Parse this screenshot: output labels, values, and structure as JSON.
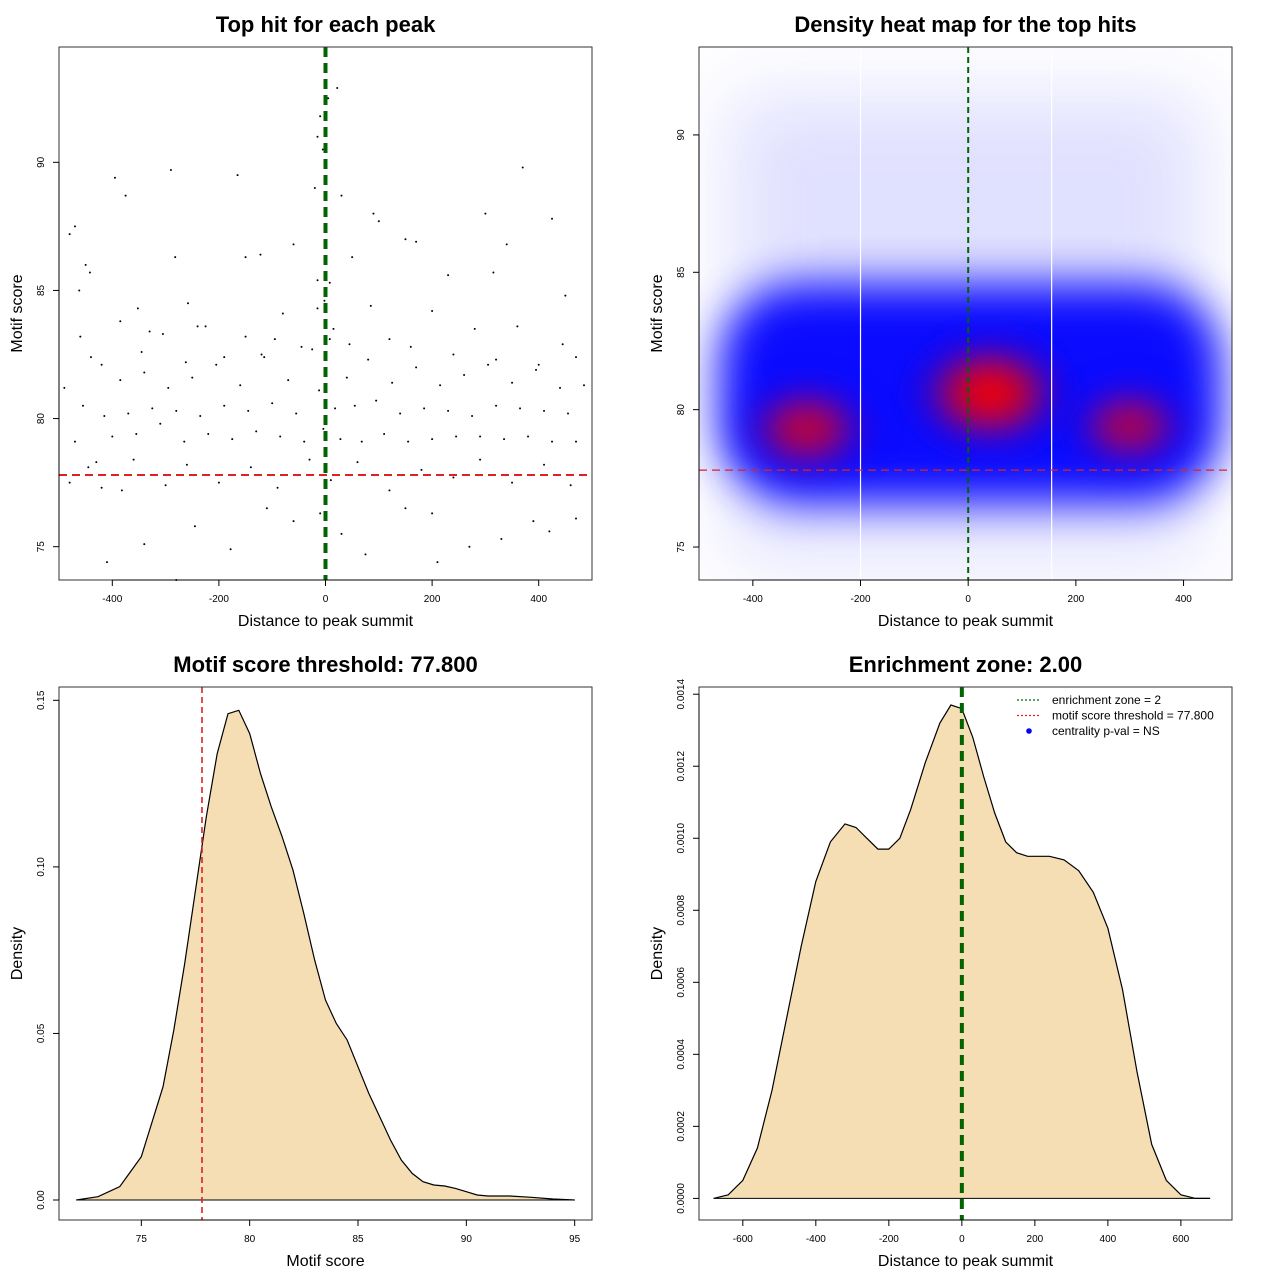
{
  "chart_data": [
    {
      "type": "scatter",
      "title": "Top hit for each peak",
      "xlabel": "Distance to peak summit",
      "ylabel": "Motif score",
      "xlim": [
        -500,
        500
      ],
      "ylim": [
        73.7,
        94.5
      ],
      "xticks": [
        -400,
        -200,
        0,
        200,
        400
      ],
      "xtick_labels": [
        "-400",
        "-200",
        "0",
        "200",
        "400"
      ],
      "yticks": [
        75,
        80,
        85,
        90
      ],
      "ytick_labels": [
        "75",
        "80",
        "85",
        "90"
      ],
      "vline": {
        "x": 0,
        "color": "#006400",
        "style": "dashed"
      },
      "hline": {
        "y": 77.8,
        "color": "#dd2222",
        "style": "dashed"
      },
      "point_color": "#000000",
      "points": [
        [
          -480,
          87.2
        ],
        [
          -470,
          87.5
        ],
        [
          -462,
          85
        ],
        [
          -450,
          86
        ],
        [
          -442,
          85.7
        ],
        [
          -395,
          89.4
        ],
        [
          -375,
          88.7
        ],
        [
          -352,
          84.3
        ],
        [
          -330,
          83.4
        ],
        [
          -290,
          89.7
        ],
        [
          -282,
          86.3
        ],
        [
          -258,
          84.5
        ],
        [
          -240,
          83.6
        ],
        [
          -165,
          89.5
        ],
        [
          -150,
          86.3
        ],
        [
          -122,
          86.4
        ],
        [
          -95,
          83.1
        ],
        [
          -60,
          86.8
        ],
        [
          -20,
          89
        ],
        [
          -15,
          91
        ],
        [
          -10,
          91.8
        ],
        [
          -5,
          90.5
        ],
        [
          5,
          92.5
        ],
        [
          22,
          92.9
        ],
        [
          30,
          88.7
        ],
        [
          50,
          86.3
        ],
        [
          90,
          88
        ],
        [
          100,
          87.7
        ],
        [
          150,
          87
        ],
        [
          170,
          86.9
        ],
        [
          230,
          85.6
        ],
        [
          300,
          88
        ],
        [
          315,
          85.7
        ],
        [
          340,
          86.8
        ],
        [
          370,
          89.8
        ],
        [
          425,
          87.8
        ],
        [
          450,
          84.8
        ],
        [
          470,
          82.4
        ],
        [
          -410,
          74.4
        ],
        [
          -382,
          77.2
        ],
        [
          -340,
          75.1
        ],
        [
          -280,
          73.7
        ],
        [
          -245,
          75.8
        ],
        [
          -178,
          74.9
        ],
        [
          -110,
          76.5
        ],
        [
          -60,
          76
        ],
        [
          -10,
          76.3
        ],
        [
          30,
          75.5
        ],
        [
          75,
          74.7
        ],
        [
          150,
          76.5
        ],
        [
          200,
          76.3
        ],
        [
          210,
          74.4
        ],
        [
          270,
          75
        ],
        [
          330,
          75.3
        ],
        [
          390,
          76
        ],
        [
          420,
          75.6
        ],
        [
          470,
          76.1
        ],
        [
          -490,
          81.2
        ],
        [
          -470,
          79.1
        ],
        [
          -455,
          80.5
        ],
        [
          -440,
          82.4
        ],
        [
          -430,
          78.3
        ],
        [
          -415,
          80.1
        ],
        [
          -400,
          79.3
        ],
        [
          -385,
          81.5
        ],
        [
          -370,
          80.2
        ],
        [
          -355,
          79.4
        ],
        [
          -340,
          81.8
        ],
        [
          -325,
          80.4
        ],
        [
          -310,
          79.8
        ],
        [
          -295,
          81.2
        ],
        [
          -280,
          80.3
        ],
        [
          -265,
          79.1
        ],
        [
          -250,
          81.6
        ],
        [
          -235,
          80.1
        ],
        [
          -220,
          79.4
        ],
        [
          -205,
          82.1
        ],
        [
          -190,
          80.5
        ],
        [
          -175,
          79.2
        ],
        [
          -160,
          81.3
        ],
        [
          -145,
          80.3
        ],
        [
          -130,
          79.5
        ],
        [
          -115,
          82.4
        ],
        [
          -100,
          80.6
        ],
        [
          -85,
          79.3
        ],
        [
          -70,
          81.5
        ],
        [
          -55,
          80.2
        ],
        [
          -40,
          79.1
        ],
        [
          -25,
          82.7
        ],
        [
          -12,
          81.1
        ],
        [
          -4,
          79.6
        ],
        [
          8,
          83.1
        ],
        [
          18,
          80.4
        ],
        [
          28,
          79.2
        ],
        [
          40,
          81.6
        ],
        [
          55,
          80.5
        ],
        [
          68,
          79.1
        ],
        [
          80,
          82.3
        ],
        [
          95,
          80.7
        ],
        [
          110,
          79.4
        ],
        [
          125,
          81.4
        ],
        [
          140,
          80.2
        ],
        [
          155,
          79.1
        ],
        [
          170,
          82
        ],
        [
          185,
          80.4
        ],
        [
          200,
          79.2
        ],
        [
          215,
          81.3
        ],
        [
          230,
          80.3
        ],
        [
          245,
          79.3
        ],
        [
          260,
          81.7
        ],
        [
          275,
          80.1
        ],
        [
          290,
          79.3
        ],
        [
          305,
          82.1
        ],
        [
          320,
          80.5
        ],
        [
          335,
          79.2
        ],
        [
          350,
          81.4
        ],
        [
          365,
          80.4
        ],
        [
          380,
          79.3
        ],
        [
          395,
          81.9
        ],
        [
          410,
          80.3
        ],
        [
          425,
          79.1
        ],
        [
          440,
          81.2
        ],
        [
          455,
          80.2
        ],
        [
          470,
          79.1
        ],
        [
          485,
          81.3
        ],
        [
          -480,
          77.5
        ],
        [
          -445,
          78.1
        ],
        [
          -420,
          77.3
        ],
        [
          -360,
          78.4
        ],
        [
          -300,
          77.4
        ],
        [
          -260,
          78.2
        ],
        [
          -200,
          77.5
        ],
        [
          -140,
          78.1
        ],
        [
          -90,
          77.3
        ],
        [
          -30,
          78.4
        ],
        [
          10,
          77.6
        ],
        [
          60,
          78.3
        ],
        [
          120,
          77.2
        ],
        [
          180,
          78
        ],
        [
          240,
          77.7
        ],
        [
          290,
          78.4
        ],
        [
          350,
          77.5
        ],
        [
          410,
          78.2
        ],
        [
          460,
          77.4
        ],
        [
          -460,
          83.2
        ],
        [
          -420,
          82.1
        ],
        [
          -385,
          83.8
        ],
        [
          -345,
          82.6
        ],
        [
          -305,
          83.3
        ],
        [
          -262,
          82.2
        ],
        [
          -225,
          83.6
        ],
        [
          -190,
          82.4
        ],
        [
          -150,
          83.2
        ],
        [
          -120,
          82.5
        ],
        [
          -80,
          84.1
        ],
        [
          -45,
          82.8
        ],
        [
          -15,
          84.3
        ],
        [
          15,
          83.5
        ],
        [
          45,
          82.9
        ],
        [
          85,
          84.4
        ],
        [
          120,
          83.1
        ],
        [
          160,
          82.8
        ],
        [
          200,
          84.2
        ],
        [
          240,
          82.5
        ],
        [
          280,
          83.5
        ],
        [
          320,
          82.3
        ],
        [
          360,
          83.6
        ],
        [
          400,
          82.1
        ],
        [
          445,
          82.9
        ],
        [
          -15,
          85.4
        ],
        [
          -2,
          84.6
        ],
        [
          8,
          85.3
        ]
      ]
    },
    {
      "type": "heatmap",
      "title": "Density heat map for the top hits",
      "xlabel": "Distance to peak summit",
      "ylabel": "Motif score",
      "xlim": [
        -500,
        490
      ],
      "ylim": [
        73.8,
        93.2
      ],
      "xticks": [
        -400,
        -200,
        0,
        200,
        400
      ],
      "xtick_labels": [
        "-400",
        "-200",
        "0",
        "200",
        "400"
      ],
      "yticks": [
        75,
        80,
        85,
        90
      ],
      "ytick_labels": [
        "75",
        "80",
        "85",
        "90"
      ],
      "colormap": [
        "#ffffff",
        "#0000ff",
        "#ff0000"
      ],
      "density_peaks": [
        {
          "x": 40,
          "y": 80.6,
          "weight": 1.0
        },
        {
          "x": -300,
          "y": 79.3,
          "weight": 0.78
        },
        {
          "x": 300,
          "y": 79.4,
          "weight": 0.7
        }
      ],
      "vlines_white": [
        -200,
        155
      ],
      "vline": {
        "x": 0,
        "color": "#006400",
        "style": "dashed"
      },
      "hline": {
        "y": 77.8,
        "color": "#dd2222",
        "style": "dashed"
      }
    },
    {
      "type": "area",
      "title": "Motif score threshold: 77.800",
      "xlabel": "Motif score",
      "ylabel": "Density",
      "xlim": [
        71.2,
        95.8
      ],
      "ylim": [
        -0.006,
        0.154
      ],
      "xticks": [
        75,
        80,
        85,
        90,
        95
      ],
      "xtick_labels": [
        "75",
        "80",
        "85",
        "90",
        "95"
      ],
      "yticks": [
        0,
        0.05,
        0.1,
        0.15
      ],
      "ytick_labels": [
        "0.00",
        "0.05",
        "0.10",
        "0.15"
      ],
      "fill_color": "#f5deb3",
      "x": [
        72,
        73,
        74,
        75,
        76,
        76.5,
        77,
        77.5,
        78,
        78.5,
        79,
        79.5,
        80,
        80.5,
        81,
        81.5,
        82,
        82.5,
        83,
        83.5,
        84,
        84.5,
        85,
        85.5,
        86,
        86.5,
        87,
        87.5,
        88,
        88.5,
        89,
        89.5,
        90,
        90.5,
        91,
        92,
        93,
        94,
        95
      ],
      "y": [
        0,
        0.001,
        0.004,
        0.013,
        0.034,
        0.051,
        0.071,
        0.093,
        0.115,
        0.134,
        0.146,
        0.147,
        0.14,
        0.128,
        0.118,
        0.109,
        0.099,
        0.086,
        0.072,
        0.06,
        0.053,
        0.048,
        0.04,
        0.032,
        0.025,
        0.018,
        0.012,
        0.008,
        0.0055,
        0.0045,
        0.0042,
        0.0035,
        0.0025,
        0.0015,
        0.0012,
        0.0012,
        0.0008,
        0.0003,
        0
      ],
      "vline": {
        "x": 77.8,
        "color": "#dd2222",
        "style": "dashed"
      }
    },
    {
      "type": "area",
      "title": "Enrichment zone: 2.00",
      "xlabel": "Distance to peak summit",
      "ylabel": "Density",
      "xlim": [
        -720,
        740
      ],
      "ylim": [
        -6e-05,
        0.00142
      ],
      "xticks": [
        -600,
        -400,
        -200,
        0,
        200,
        400,
        600
      ],
      "xtick_labels": [
        "-600",
        "-400",
        "-200",
        "0",
        "200",
        "400",
        "600"
      ],
      "yticks": [
        0,
        0.0002,
        0.0004,
        0.0006,
        0.0008,
        0.001,
        0.0012,
        0.0014
      ],
      "ytick_labels": [
        "0.0000",
        "0.0002",
        "0.0004",
        "0.0006",
        "0.0008",
        "0.0010",
        "0.0012",
        "0.0014"
      ],
      "fill_color": "#f5deb3",
      "x": [
        -680,
        -640,
        -600,
        -560,
        -520,
        -480,
        -440,
        -400,
        -360,
        -320,
        -290,
        -260,
        -230,
        -200,
        -170,
        -140,
        -100,
        -60,
        -30,
        0,
        30,
        60,
        90,
        120,
        150,
        180,
        210,
        240,
        280,
        320,
        360,
        400,
        440,
        480,
        520,
        560,
        600,
        640,
        680
      ],
      "y": [
        0,
        1e-05,
        5e-05,
        0.00014,
        0.0003,
        0.0005,
        0.0007,
        0.00088,
        0.00099,
        0.00104,
        0.00103,
        0.001,
        0.00097,
        0.00097,
        0.001,
        0.00108,
        0.00121,
        0.00132,
        0.00137,
        0.00136,
        0.00128,
        0.00117,
        0.00107,
        0.00099,
        0.00096,
        0.00095,
        0.00095,
        0.00095,
        0.00094,
        0.00091,
        0.00085,
        0.00075,
        0.00058,
        0.00035,
        0.00015,
        5e-05,
        1e-05,
        0,
        0
      ],
      "vline": {
        "x": 0,
        "color": "#006400",
        "style": "dashed"
      },
      "legend": {
        "position": "top-right",
        "entries": [
          {
            "label": "enrichment zone = 2",
            "color": "#006400",
            "marker": "dotted-line"
          },
          {
            "label": "motif score threshold = 77.800",
            "color": "#dd2222",
            "marker": "dotted-line"
          },
          {
            "label": "centrality p-val = NS",
            "color": "#0000ff",
            "marker": "dot"
          }
        ]
      }
    }
  ]
}
